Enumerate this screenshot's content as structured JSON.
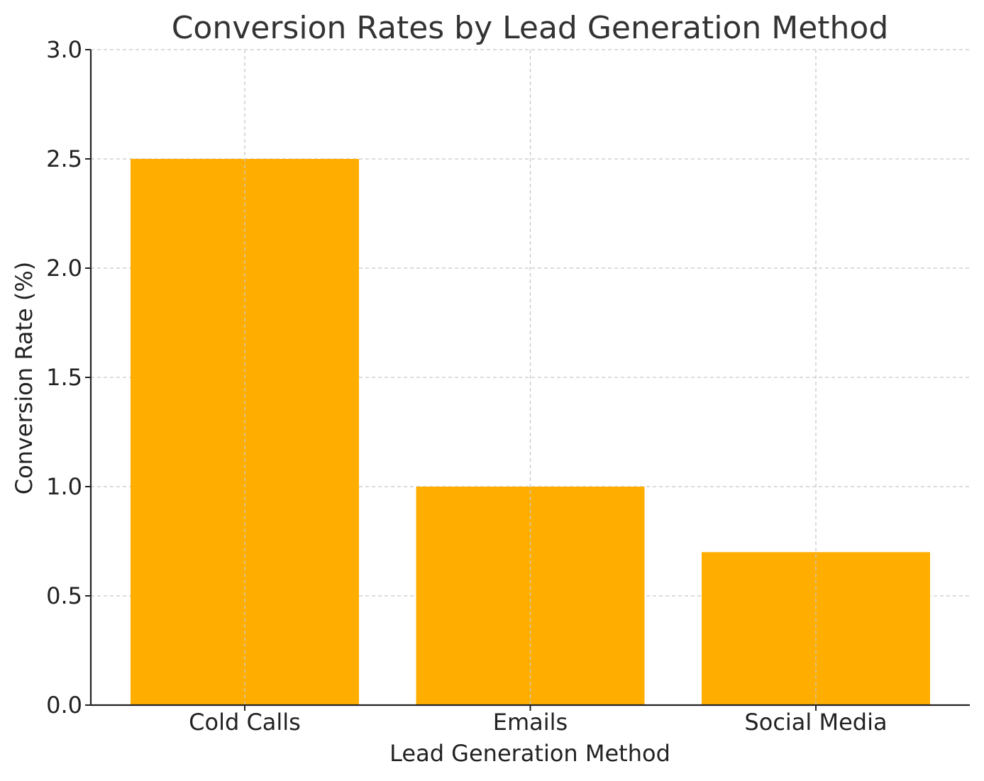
{
  "chart_data": {
    "type": "bar",
    "title": "Conversion Rates by Lead Generation Method",
    "xlabel": "Lead Generation Method",
    "ylabel": "Conversion Rate (%)",
    "categories": [
      "Cold Calls",
      "Emails",
      "Social Media"
    ],
    "values": [
      2.5,
      1.0,
      0.7
    ],
    "ylim": [
      0,
      3.0
    ],
    "yticks": [
      0.0,
      0.5,
      1.0,
      1.5,
      2.0,
      2.5,
      3.0
    ],
    "ytick_labels": [
      "0.0",
      "0.5",
      "1.0",
      "1.5",
      "2.0",
      "2.5",
      "3.0"
    ],
    "grid": true,
    "legend": "none",
    "colors": {
      "bar": "#ffae00"
    }
  }
}
